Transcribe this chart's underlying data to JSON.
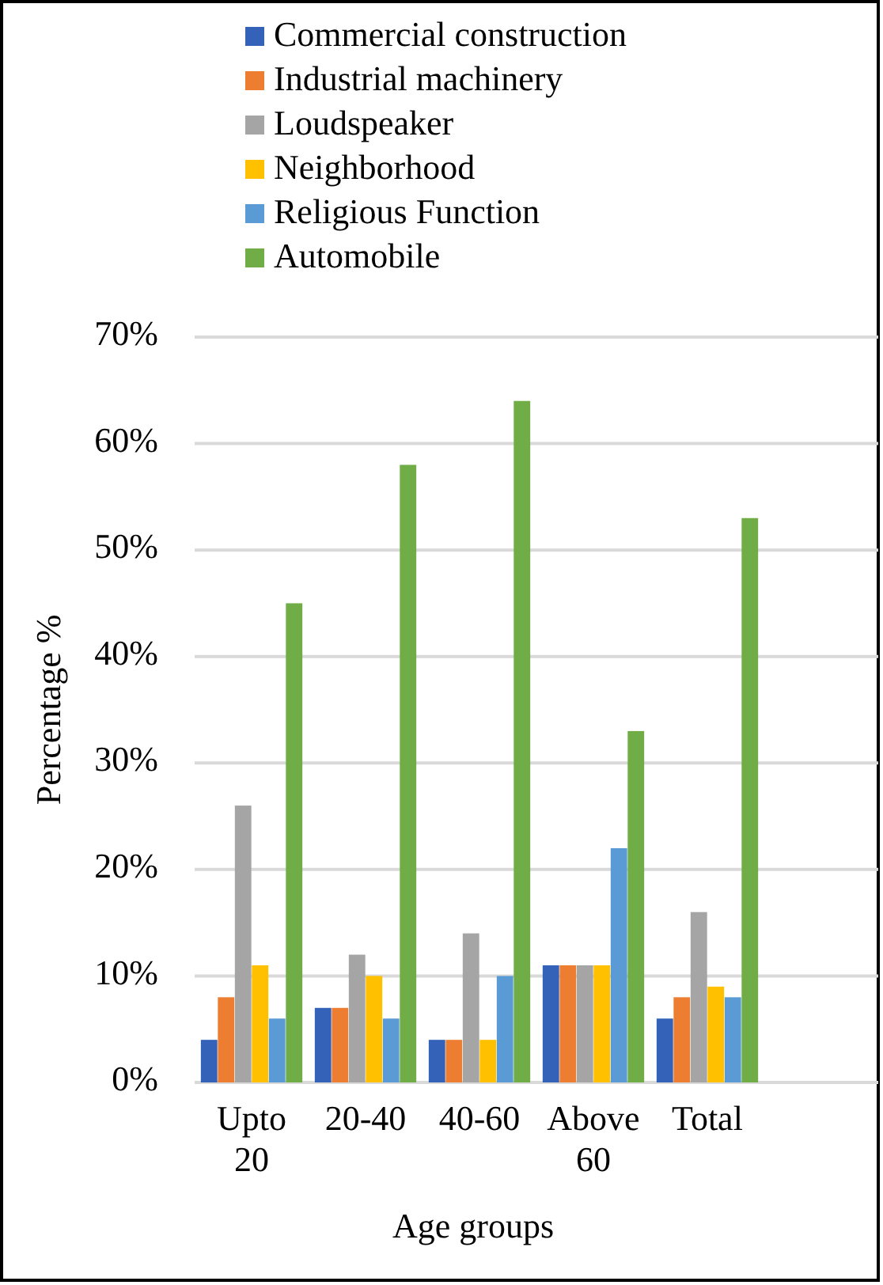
{
  "chart_data": {
    "type": "bar",
    "xlabel": "Age groups",
    "ylabel": "Percentage %",
    "categories": [
      "Upto 20",
      "20-40",
      "40-60",
      "Above 60",
      "Total",
      null
    ],
    "series": [
      {
        "name": "Commercial construction",
        "color": "#3462b8",
        "values": [
          4,
          7,
          4,
          11,
          6,
          null
        ]
      },
      {
        "name": "Industrial machinery",
        "color": "#ed7d31",
        "values": [
          8,
          7,
          4,
          11,
          8,
          null
        ]
      },
      {
        "name": "Loudspeaker",
        "color": "#a5a5a5",
        "values": [
          26,
          12,
          14,
          11,
          16,
          null
        ]
      },
      {
        "name": "Neighborhood",
        "color": "#ffc000",
        "values": [
          11,
          10,
          4,
          11,
          9,
          null
        ]
      },
      {
        "name": "Religious Function",
        "color": "#5b9bd5",
        "values": [
          6,
          6,
          10,
          22,
          8,
          null
        ]
      },
      {
        "name": "Automobile",
        "color": "#70ad47",
        "values": [
          45,
          58,
          64,
          33,
          53,
          null
        ]
      }
    ],
    "ylim": [
      0,
      70
    ],
    "yticks": [
      {
        "value": 0,
        "label": "0%"
      },
      {
        "value": 10,
        "label": "10%"
      },
      {
        "value": 20,
        "label": "20%"
      },
      {
        "value": 30,
        "label": "30%"
      },
      {
        "value": 40,
        "label": "40%"
      },
      {
        "value": 50,
        "label": "50%"
      },
      {
        "value": 60,
        "label": "60%"
      },
      {
        "value": 70,
        "label": "70%"
      }
    ],
    "grid": "y",
    "legend": "top"
  }
}
